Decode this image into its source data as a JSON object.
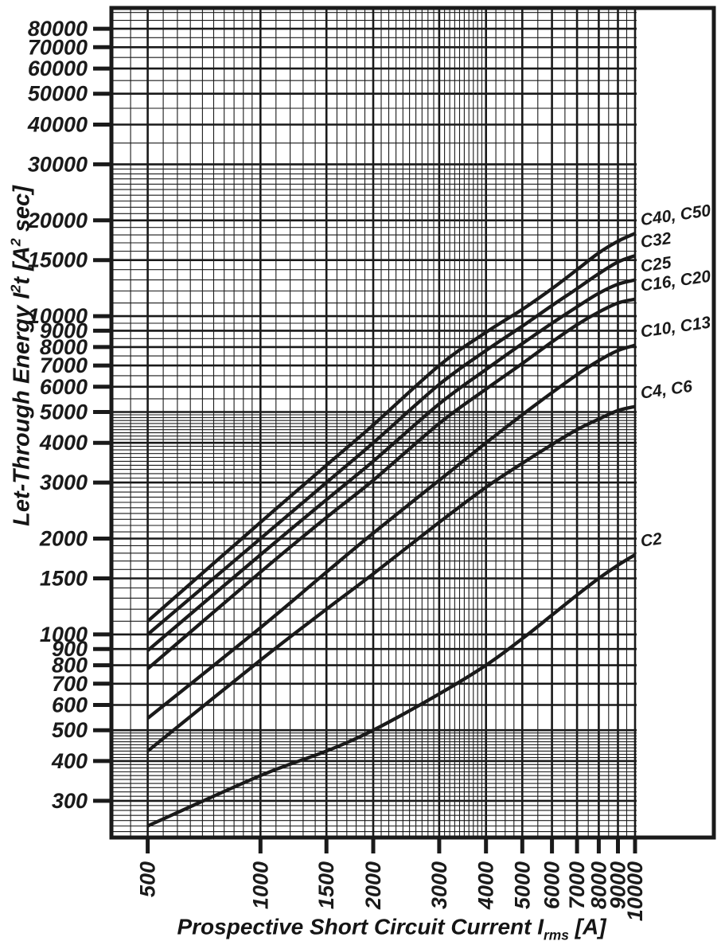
{
  "colors": {
    "ink": "#1a1a1a",
    "background": "#ffffff"
  },
  "axis_titles": {
    "x": {
      "pre": "Prospective Short Circuit Current I",
      "sub": "rms",
      "post": " [A]"
    },
    "y": {
      "pre": "Let-Through Energy I",
      "sup1": "2",
      "mid": "t [A",
      "sup2": "2",
      "post": " sec]"
    }
  },
  "chart_data": {
    "type": "line",
    "title": "",
    "xlabel": "Prospective Short Circuit Current Irms [A]",
    "ylabel": "Let-Through Energy I²t [A² sec]",
    "grid": true,
    "legend_position": "right-edge-labels",
    "x_axis": {
      "scale": "log",
      "range": [
        400,
        10000
      ],
      "tick_values": [
        500,
        1000,
        1500,
        2000,
        3000,
        4000,
        5000,
        6000,
        7000,
        8000,
        9000,
        10000
      ],
      "tick_labels": [
        "500",
        "1000",
        "1500",
        "2000",
        "3000",
        "4000",
        "5000",
        "6000",
        "7000",
        "8000",
        "9000",
        "10000"
      ],
      "minor_line_specs": [
        {
          "from": 450,
          "to": 950,
          "step": 50
        },
        {
          "from": 1100,
          "to": 1900,
          "step": 100
        },
        {
          "from": 2100,
          "to": 3900,
          "step": 100
        },
        {
          "from": 4250,
          "to": 4750,
          "step": 250
        },
        {
          "from": 5500,
          "to": 9500,
          "step": 500
        }
      ]
    },
    "y_axis": {
      "scale": "log",
      "range": [
        230,
        93000
      ],
      "tick_values": [
        80000,
        70000,
        60000,
        50000,
        40000,
        30000,
        20000,
        15000,
        10000,
        9000,
        8000,
        7000,
        6000,
        5000,
        4000,
        3000,
        2000,
        1500,
        1000,
        900,
        800,
        700,
        600,
        500,
        400,
        300
      ],
      "tick_labels": [
        "80000",
        "70000",
        "60000",
        "50000",
        "40000",
        "30000",
        "20000",
        "15000",
        "10000",
        "9000",
        "8000",
        "7000",
        "6000",
        "5000",
        "4000",
        "3000",
        "2000",
        "1500",
        "1000",
        "900",
        "800",
        "700",
        "600",
        "500",
        "400",
        "300"
      ],
      "minor_line_specs": [
        {
          "from": 240,
          "to": 490,
          "step": 10
        },
        {
          "from": 1100,
          "to": 1900,
          "step": 100
        },
        {
          "from": 2100,
          "to": 4900,
          "step": 100
        },
        {
          "from": 5500,
          "to": 9500,
          "step": 1000
        },
        {
          "from": 11000,
          "to": 19000,
          "step": 1000
        },
        {
          "from": 21000,
          "to": 29000,
          "step": 1000
        },
        {
          "from": 35000,
          "to": 75000,
          "step": 10000
        },
        {
          "from": 85000,
          "to": 90000,
          "step": 5000
        }
      ]
    },
    "series": [
      {
        "name": "C40, C50",
        "points": [
          [
            500,
            1100
          ],
          [
            1000,
            2250
          ],
          [
            1500,
            3400
          ],
          [
            2000,
            4550
          ],
          [
            3000,
            7000
          ],
          [
            4000,
            8900
          ],
          [
            5000,
            10500
          ],
          [
            6000,
            12200
          ],
          [
            7000,
            14000
          ],
          [
            8000,
            15800
          ],
          [
            9000,
            17200
          ],
          [
            10000,
            18200
          ]
        ]
      },
      {
        "name": "C32",
        "points": [
          [
            500,
            1000
          ],
          [
            1000,
            2000
          ],
          [
            1500,
            3000
          ],
          [
            2000,
            4000
          ],
          [
            3000,
            6100
          ],
          [
            4000,
            7800
          ],
          [
            5000,
            9300
          ],
          [
            6000,
            10800
          ],
          [
            7000,
            12200
          ],
          [
            8000,
            13600
          ],
          [
            9000,
            14800
          ],
          [
            10000,
            15500
          ]
        ]
      },
      {
        "name": "C25",
        "points": [
          [
            500,
            890
          ],
          [
            1000,
            1780
          ],
          [
            1500,
            2650
          ],
          [
            2000,
            3500
          ],
          [
            3000,
            5300
          ],
          [
            4000,
            6800
          ],
          [
            5000,
            8200
          ],
          [
            6000,
            9500
          ],
          [
            7000,
            10700
          ],
          [
            8000,
            11800
          ],
          [
            9000,
            12600
          ],
          [
            10000,
            13000
          ]
        ]
      },
      {
        "name": "C16, C20",
        "points": [
          [
            500,
            780
          ],
          [
            1000,
            1570
          ],
          [
            1500,
            2330
          ],
          [
            2000,
            3050
          ],
          [
            3000,
            4600
          ],
          [
            4000,
            5900
          ],
          [
            5000,
            7100
          ],
          [
            6000,
            8300
          ],
          [
            7000,
            9400
          ],
          [
            8000,
            10300
          ],
          [
            9000,
            11000
          ],
          [
            10000,
            11300
          ]
        ]
      },
      {
        "name": "C10, C13",
        "points": [
          [
            500,
            545
          ],
          [
            1000,
            1050
          ],
          [
            1500,
            1570
          ],
          [
            2000,
            2080
          ],
          [
            3000,
            3050
          ],
          [
            4000,
            4000
          ],
          [
            5000,
            4900
          ],
          [
            6000,
            5750
          ],
          [
            7000,
            6550
          ],
          [
            8000,
            7250
          ],
          [
            9000,
            7800
          ],
          [
            10000,
            8100
          ]
        ]
      },
      {
        "name": "C4, C6",
        "points": [
          [
            500,
            430
          ],
          [
            1000,
            830
          ],
          [
            1500,
            1200
          ],
          [
            2000,
            1550
          ],
          [
            3000,
            2250
          ],
          [
            4000,
            2900
          ],
          [
            5000,
            3450
          ],
          [
            6000,
            3950
          ],
          [
            7000,
            4400
          ],
          [
            8000,
            4750
          ],
          [
            9000,
            5050
          ],
          [
            10000,
            5200
          ]
        ]
      },
      {
        "name": "C2",
        "points": [
          [
            500,
            250
          ],
          [
            1000,
            360
          ],
          [
            1500,
            430
          ],
          [
            2000,
            500
          ],
          [
            3000,
            650
          ],
          [
            4000,
            800
          ],
          [
            5000,
            970
          ],
          [
            6000,
            1150
          ],
          [
            7000,
            1330
          ],
          [
            8000,
            1500
          ],
          [
            9000,
            1650
          ],
          [
            10000,
            1780
          ]
        ]
      }
    ]
  }
}
